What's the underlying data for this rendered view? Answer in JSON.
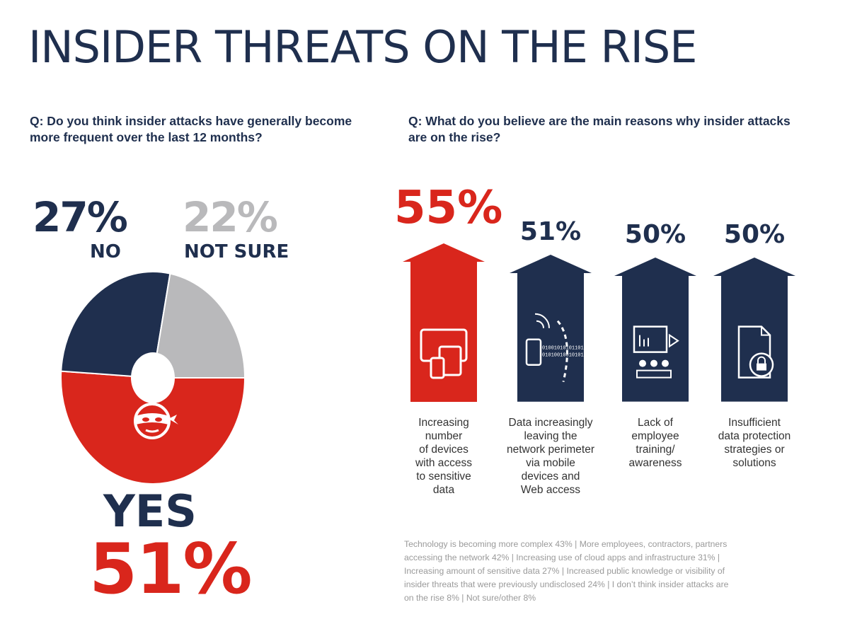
{
  "title": "INSIDER THREATS ON THE RISE",
  "colors": {
    "navy": "#1f2f4e",
    "red": "#d9261c",
    "grey": "#b9b9bb"
  },
  "left": {
    "question": "Q: Do you think insider attacks have generally become more frequent over the last 12 months?",
    "no": {
      "pct": "27%",
      "label": "NO"
    },
    "not_sure": {
      "pct": "22%",
      "label": "NOT SURE"
    },
    "yes": {
      "pct": "51%",
      "label": "YES"
    },
    "center_icon": "burglar-mask-icon"
  },
  "right": {
    "question": "Q: What do you believe are the main reasons why insider attacks are on the rise?",
    "bars": [
      {
        "pct": "55%",
        "icon": "devices-icon",
        "label_lines": [
          "Increasing",
          "number",
          "of devices",
          "with access",
          "to sensitive",
          "data"
        ]
      },
      {
        "pct": "51%",
        "icon": "mobile-data-icon",
        "label_lines": [
          "Data increasingly",
          "leaving the",
          "network perimeter",
          "via mobile",
          "devices and",
          "Web access"
        ]
      },
      {
        "pct": "50%",
        "icon": "training-presentation-icon",
        "label_lines": [
          "Lack of",
          "employee",
          "training/",
          "awareness"
        ]
      },
      {
        "pct": "50%",
        "icon": "locked-document-icon",
        "label_lines": [
          "Insufficient",
          "data protection",
          "strategies or",
          "solutions"
        ]
      }
    ],
    "binary_text": [
      "01001010101101010101",
      "01010010010101010101"
    ],
    "footnote_lines": [
      "Technology is becoming more complex 43%  |  More employees, contractors, partners",
      "accessing the network 42%  |  Increasing use of cloud apps and infrastructure 31%  |",
      "Increasing amount of sensitive data 27%  |  Increased public knowledge or visibility of",
      "insider threats that were previously undisclosed 24%  |  I don’t think insider attacks are",
      "on the  rise 8%  |  Not sure/other 8%"
    ]
  },
  "chart_data": [
    {
      "type": "pie",
      "title": "Q: Do you think insider attacks have generally become more frequent over the last 12 months?",
      "categories": [
        "YES",
        "NO",
        "NOT SURE"
      ],
      "values": [
        51,
        27,
        22
      ],
      "colors": [
        "#d9261c",
        "#1f2f4e",
        "#b9b9bb"
      ]
    },
    {
      "type": "bar",
      "title": "Q: What do you believe are the main reasons why insider attacks are on the rise?",
      "categories": [
        "Increasing number of devices with access to sensitive data",
        "Data increasingly leaving the network perimeter via mobile devices and Web access",
        "Lack of employee training/ awareness",
        "Insufficient data protection strategies or solutions"
      ],
      "values": [
        55,
        51,
        50,
        50
      ],
      "colors": [
        "#d9261c",
        "#1f2f4e",
        "#1f2f4e",
        "#1f2f4e"
      ]
    }
  ]
}
